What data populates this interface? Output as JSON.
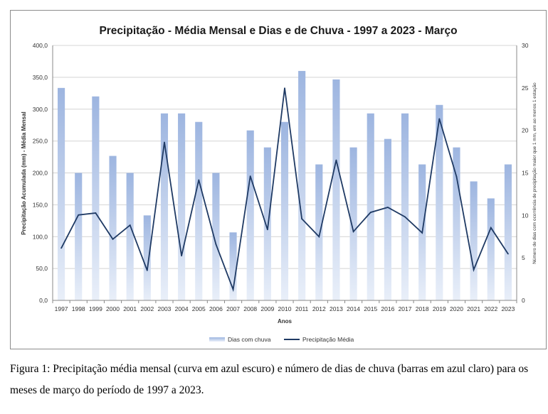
{
  "chart_data": {
    "type": "bar",
    "title": "Precipitação - Média Mensal e Dias e de Chuva - 1997 a 2023 - Março",
    "xlabel": "Anos",
    "ylabel_left": "Precipitação Acumulada (mm) - Média Mensal",
    "ylabel_right": "Número de dias com ocorrência de precipitação maior que 1 mm, em ao menos 1 estação",
    "ylim_left": [
      0,
      400
    ],
    "ylim_right": [
      0,
      30
    ],
    "yticks_left": [
      "0,0",
      "50,0",
      "100,0",
      "150,0",
      "200,0",
      "250,0",
      "300,0",
      "350,0",
      "400,0"
    ],
    "yticks_right": [
      "0",
      "5",
      "10",
      "15",
      "20",
      "25",
      "30"
    ],
    "grid": true,
    "legend_position": "bottom",
    "categories": [
      "1997",
      "1998",
      "1999",
      "2000",
      "2001",
      "2002",
      "2003",
      "2004",
      "2005",
      "2006",
      "2007",
      "2008",
      "2009",
      "2010",
      "2011",
      "2012",
      "2013",
      "2014",
      "2015",
      "2016",
      "2017",
      "2018",
      "2019",
      "2020",
      "2021",
      "2022",
      "2023"
    ],
    "series": [
      {
        "name": "Dias com chuva",
        "type": "bar",
        "axis": "right",
        "values": [
          25,
          15,
          24,
          17,
          15,
          10,
          22,
          22,
          21,
          15,
          8,
          20,
          18,
          21,
          27,
          16,
          26,
          18,
          22,
          19,
          22,
          16,
          23,
          18,
          14,
          12,
          16
        ]
      },
      {
        "name": "Precipitação Média",
        "type": "line",
        "axis": "left",
        "values": [
          82,
          134,
          137,
          96,
          118,
          47,
          248,
          70,
          189,
          88,
          17,
          195,
          111,
          333,
          128,
          100,
          220,
          108,
          138,
          146,
          131,
          106,
          285,
          194,
          48,
          114,
          73
        ]
      }
    ],
    "colors": {
      "bar_top": "#9db5e0",
      "bar_bottom": "#e9eff9",
      "line": "#1f3a64",
      "grid": "#d4d4d4"
    }
  },
  "caption": "Figura 1: Precipitação média mensal (curva em azul escuro) e número de dias de chuva (barras em azul claro) para os meses de março do período de 1997 a 2023."
}
